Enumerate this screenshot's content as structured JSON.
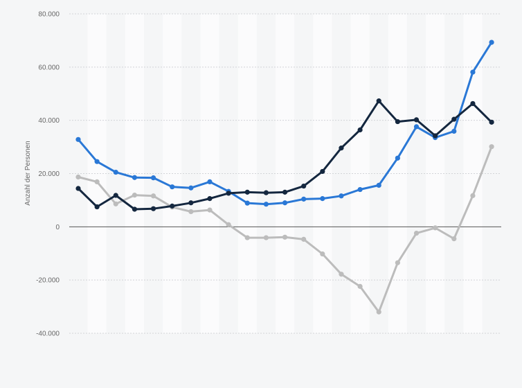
{
  "chart_data": {
    "type": "line",
    "title": "",
    "xlabel": "",
    "ylabel": "Anzahl der Personen",
    "ylim": [
      -40000,
      80000
    ],
    "yticks": [
      80000,
      60000,
      40000,
      20000,
      0,
      -20000,
      -40000
    ],
    "ytick_labels": [
      "80.000",
      "60.000",
      "40.000",
      "20.000",
      "0",
      "-20.000",
      "-40.000"
    ],
    "x": [
      1,
      2,
      3,
      4,
      5,
      6,
      7,
      8,
      9,
      10,
      11,
      12,
      13,
      14,
      15,
      16,
      17,
      18,
      19,
      20,
      21,
      22,
      23
    ],
    "grid": true,
    "legend": "none",
    "series": [
      {
        "color": "#2a78d6",
        "values": [
          32800,
          24500,
          20500,
          18500,
          18400,
          15000,
          14600,
          16900,
          13300,
          8900,
          8500,
          9000,
          10400,
          10600,
          11600,
          14000,
          15600,
          25800,
          37600,
          33500,
          35900,
          58100,
          69300
        ]
      },
      {
        "color": "#14273f",
        "values": [
          14400,
          7500,
          11800,
          6600,
          6800,
          7800,
          9000,
          10600,
          12600,
          13000,
          12800,
          13000,
          15300,
          20800,
          29600,
          36400,
          47300,
          39500,
          40200,
          34200,
          40400,
          46300,
          39300
        ]
      },
      {
        "color": "#bcbcbc",
        "values": [
          18700,
          16900,
          8600,
          11900,
          11600,
          7400,
          5700,
          6300,
          800,
          -4100,
          -4100,
          -3900,
          -4700,
          -10200,
          -17800,
          -22400,
          -32000,
          -13500,
          -2400,
          -400,
          -4500,
          11700,
          30100
        ]
      }
    ]
  }
}
